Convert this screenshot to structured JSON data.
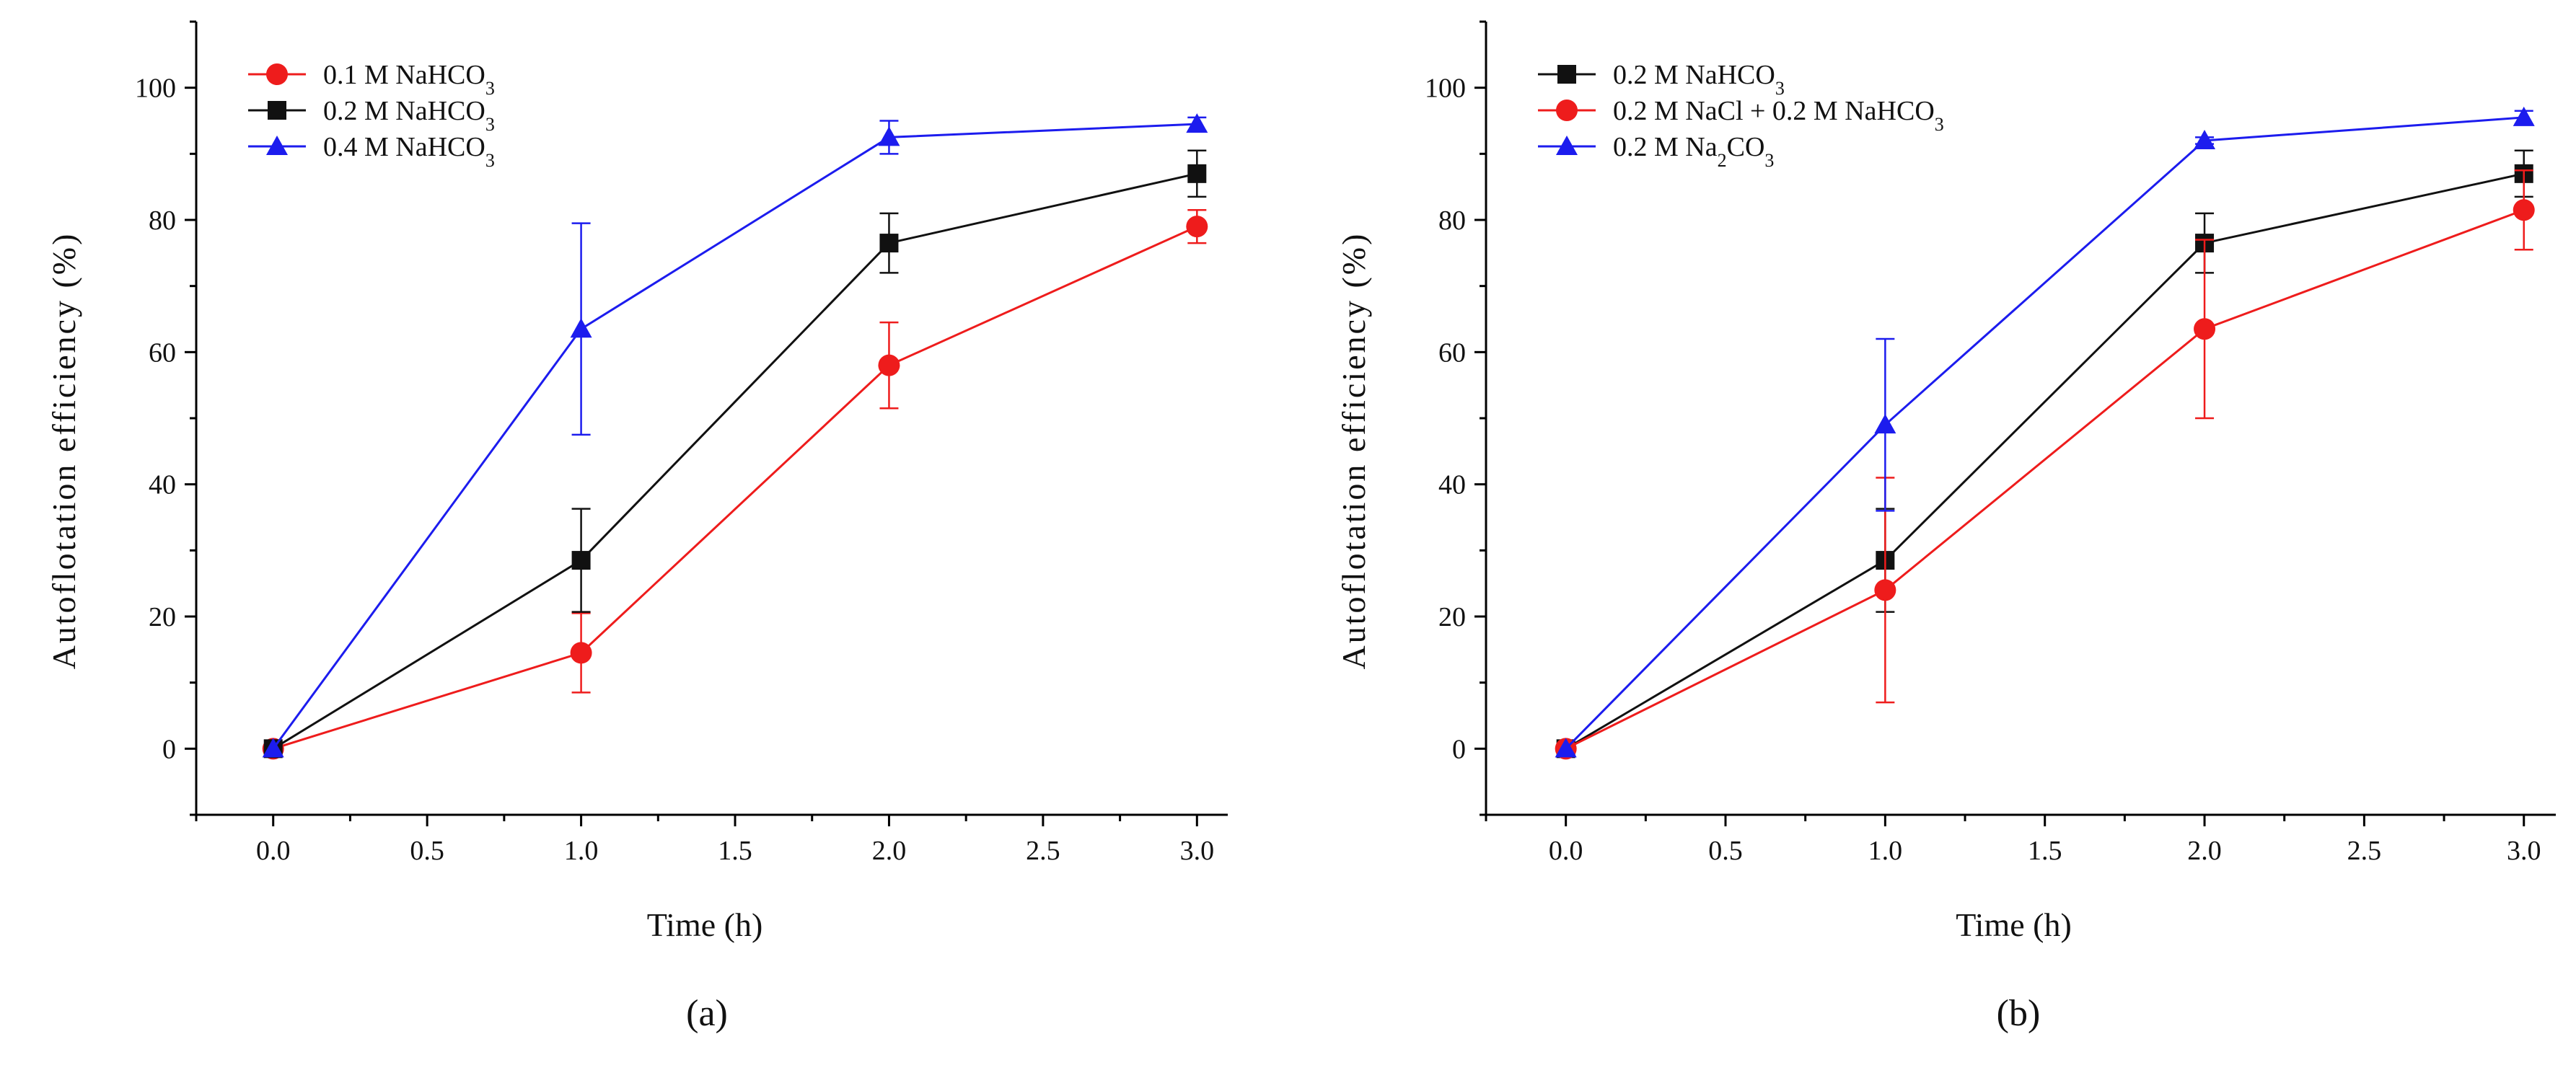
{
  "chart_data": [
    {
      "type": "line",
      "panel_label": "(a)",
      "xlabel": "Time (h)",
      "ylabel": "Autoflotation efficiency (%)",
      "xlim": [
        -0.25,
        3.1
      ],
      "ylim": [
        -10,
        110
      ],
      "xticks": [
        0.0,
        0.5,
        1.0,
        1.5,
        2.0,
        2.5,
        3.0
      ],
      "xtick_labels": [
        "0.0",
        "0.5",
        "1.0",
        "1.5",
        "2.0",
        "2.5",
        "3.0"
      ],
      "yticks": [
        0,
        20,
        40,
        60,
        80,
        100
      ],
      "ytick_labels": [
        "0",
        "20",
        "40",
        "60",
        "80",
        "100"
      ],
      "legend_position": "top-left",
      "grid": false,
      "series": [
        {
          "name": "0.1 M NaHCO3",
          "legend_parts": [
            [
              "0.1 M NaHCO",
              false
            ],
            [
              "3",
              true
            ]
          ],
          "color": "#ee1c1c",
          "marker": "circle",
          "x": [
            0,
            1,
            2,
            3
          ],
          "y": [
            0,
            14.5,
            58,
            79
          ],
          "err": [
            0,
            6,
            6.5,
            2.5
          ]
        },
        {
          "name": "0.2 M NaHCO3",
          "legend_parts": [
            [
              "0.2 M NaHCO",
              false
            ],
            [
              "3",
              true
            ]
          ],
          "color": "#111111",
          "marker": "square",
          "x": [
            0,
            1,
            2,
            3
          ],
          "y": [
            0,
            28.5,
            76.5,
            87
          ],
          "err": [
            0,
            7.8,
            4.5,
            3.5
          ]
        },
        {
          "name": "0.4 M NaHCO3",
          "legend_parts": [
            [
              "0.4 M NaHCO",
              false
            ],
            [
              "3",
              true
            ]
          ],
          "color": "#1c1cee",
          "marker": "triangle",
          "x": [
            0,
            1,
            2,
            3
          ],
          "y": [
            0,
            63.5,
            92.5,
            94.5
          ],
          "err": [
            0,
            16,
            2.5,
            1
          ]
        }
      ]
    },
    {
      "type": "line",
      "panel_label": "(b)",
      "xlabel": "Time (h)",
      "ylabel": "Autoflotation efficiency (%)",
      "xlim": [
        -0.25,
        3.1
      ],
      "ylim": [
        -10,
        110
      ],
      "xticks": [
        0.0,
        0.5,
        1.0,
        1.5,
        2.0,
        2.5,
        3.0
      ],
      "xtick_labels": [
        "0.0",
        "0.5",
        "1.0",
        "1.5",
        "2.0",
        "2.5",
        "3.0"
      ],
      "yticks": [
        0,
        20,
        40,
        60,
        80,
        100
      ],
      "ytick_labels": [
        "0",
        "20",
        "40",
        "60",
        "80",
        "100"
      ],
      "legend_position": "top-left",
      "grid": false,
      "series": [
        {
          "name": "0.2 M NaHCO3",
          "legend_parts": [
            [
              "0.2 M NaHCO",
              false
            ],
            [
              "3",
              true
            ]
          ],
          "color": "#111111",
          "marker": "square",
          "x": [
            0,
            1,
            2,
            3
          ],
          "y": [
            0,
            28.5,
            76.5,
            87
          ],
          "err": [
            0,
            7.8,
            4.5,
            3.5
          ]
        },
        {
          "name": "0.2 M NaCl + 0.2 M NaHCO3",
          "legend_parts": [
            [
              "0.2 M NaCl + 0.2 M NaHCO",
              false
            ],
            [
              "3",
              true
            ]
          ],
          "color": "#ee1c1c",
          "marker": "circle",
          "x": [
            0,
            1,
            2,
            3
          ],
          "y": [
            0,
            24,
            63.5,
            81.5
          ],
          "err": [
            0,
            17,
            13.5,
            6
          ]
        },
        {
          "name": "0.2 M Na2CO3",
          "legend_parts": [
            [
              "0.2 M Na",
              false
            ],
            [
              "2",
              true
            ],
            [
              "CO",
              false
            ],
            [
              "3",
              true
            ]
          ],
          "color": "#1c1cee",
          "marker": "triangle",
          "x": [
            0,
            1,
            2,
            3
          ],
          "y": [
            0,
            49,
            92,
            95.5
          ],
          "err": [
            0,
            13,
            0.5,
            1
          ]
        }
      ]
    }
  ]
}
